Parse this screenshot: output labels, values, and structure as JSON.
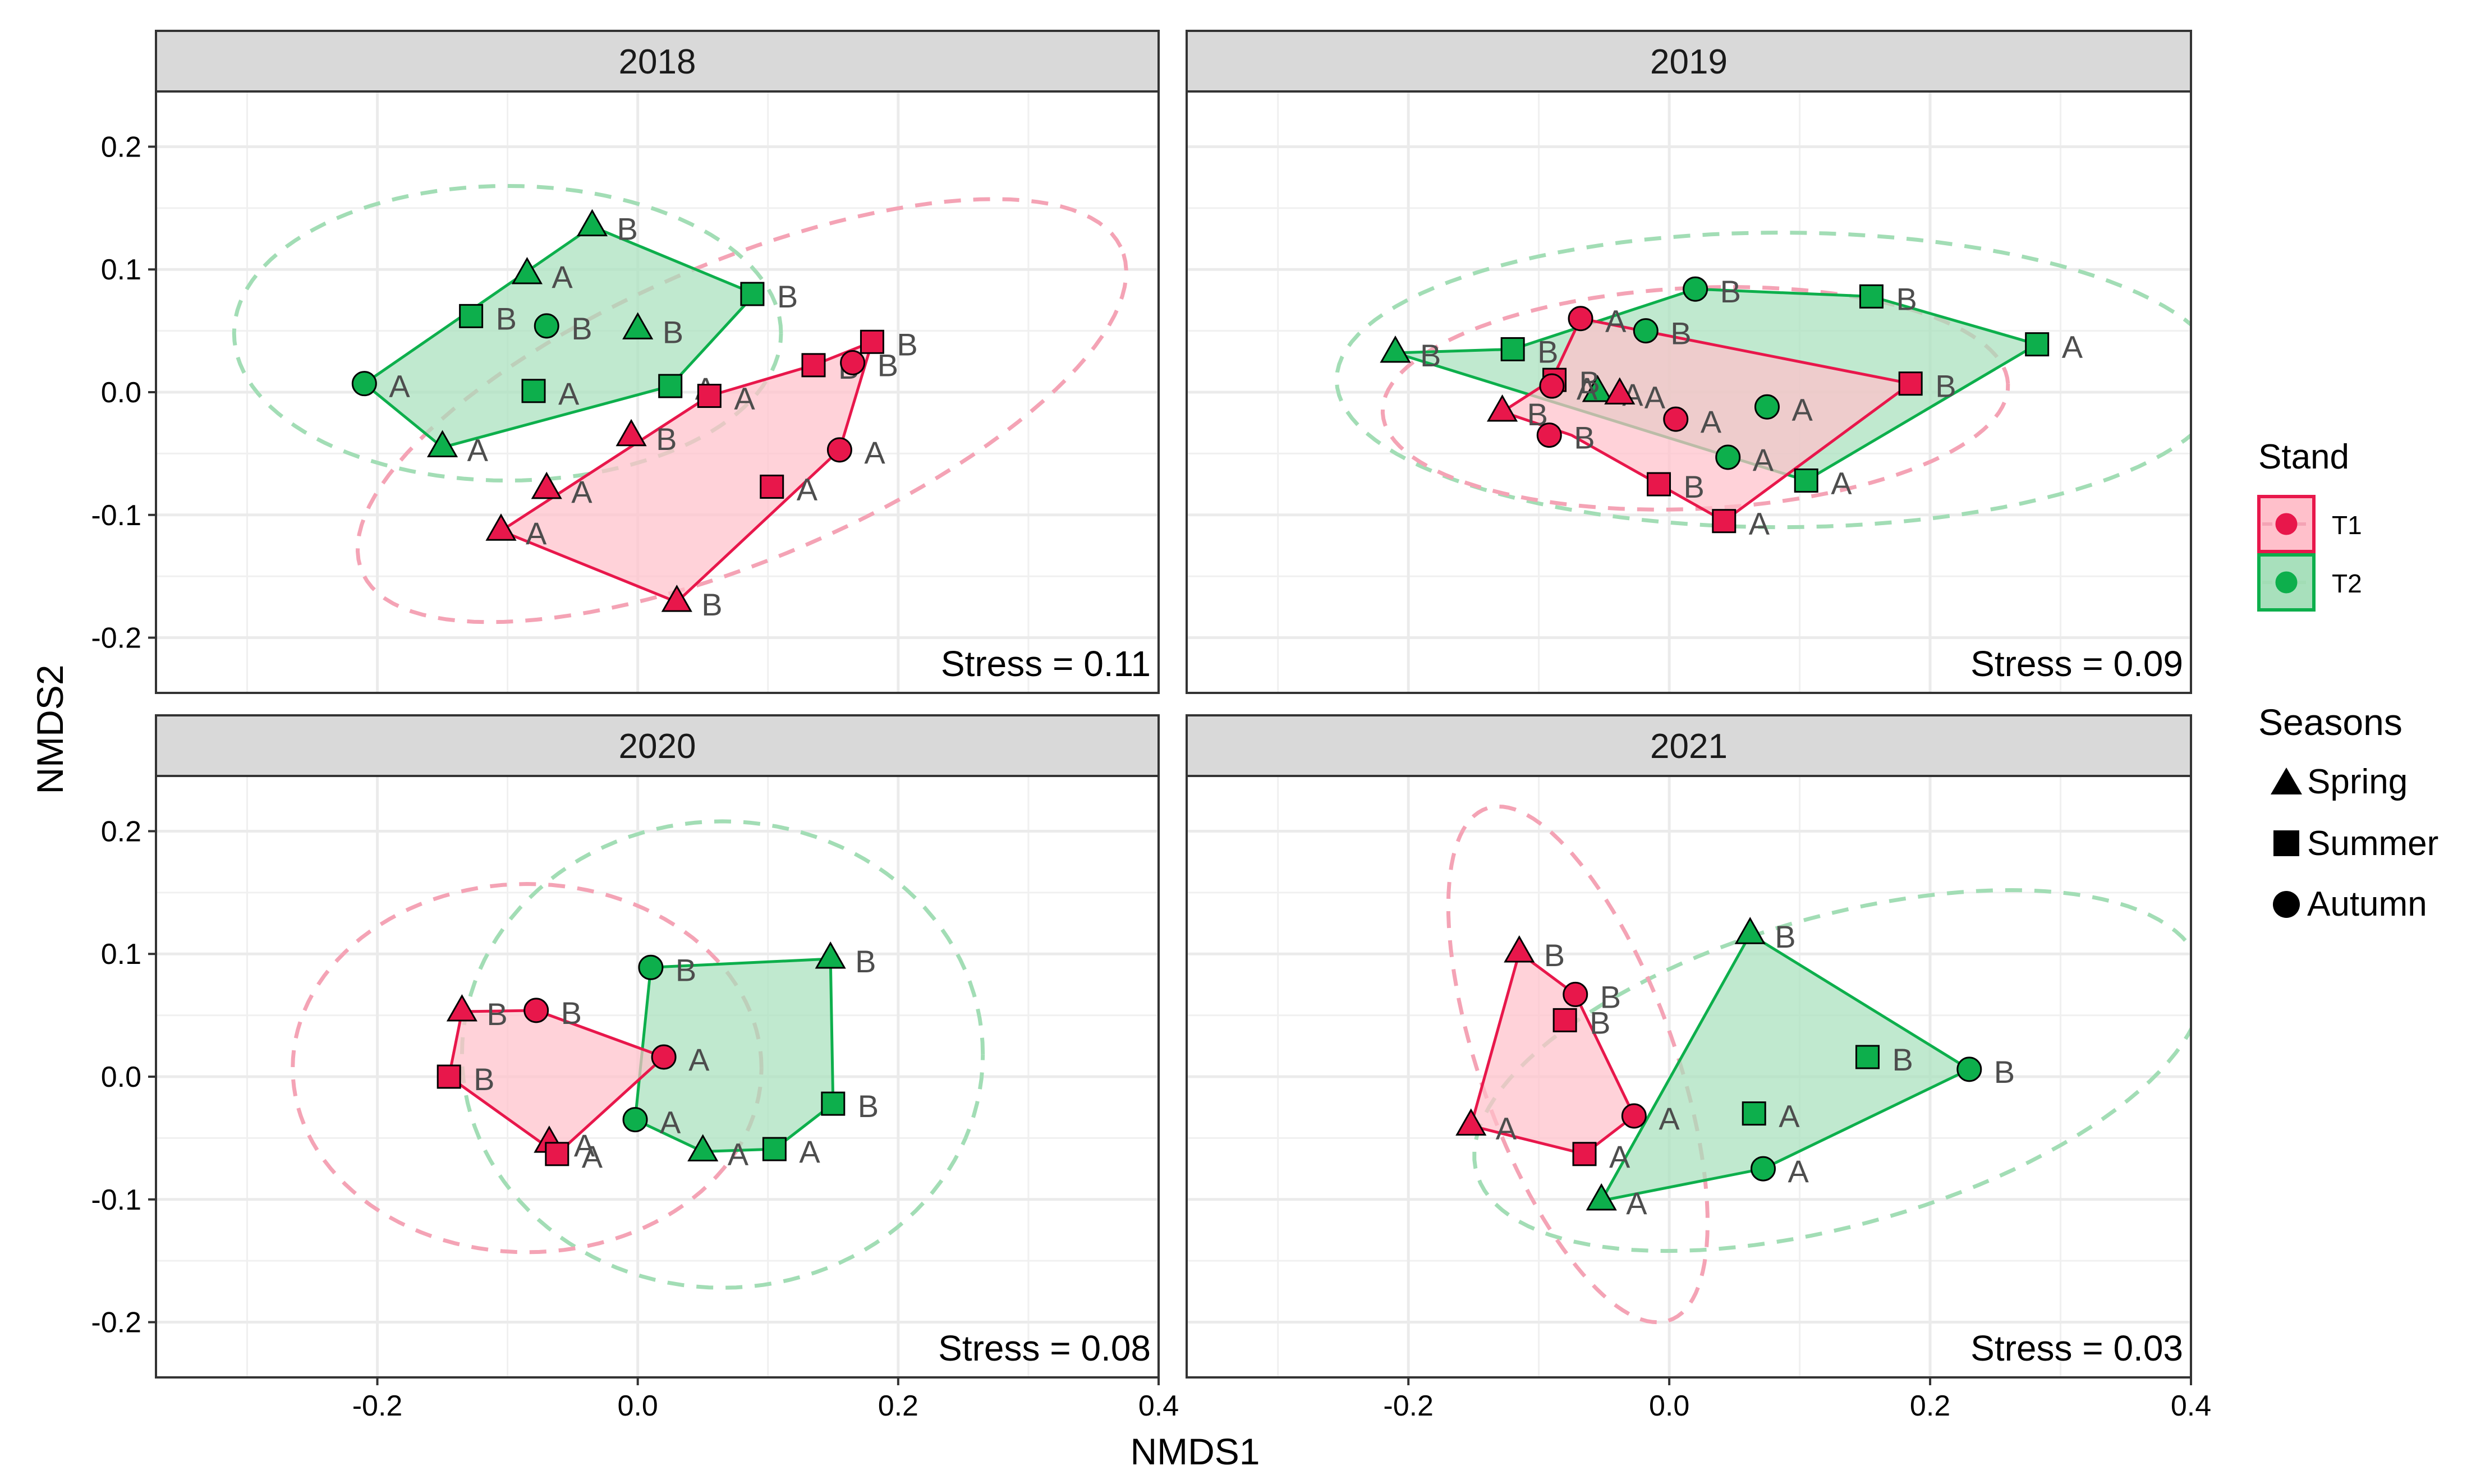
{
  "figure": {
    "xlabel": "NMDS1",
    "ylabel": "NMDS2",
    "colors": {
      "T1": "#E8174B",
      "T2": "#0DAF4C",
      "T1_fill": "#FFC0CB",
      "T2_fill": "#A8E0BC",
      "ellipse_T1": "#F4A3B5",
      "ellipse_T2": "#A2DDB5",
      "strip": "#D9D9D9"
    }
  },
  "legend": {
    "stand_title": "Stand",
    "stand_items": [
      {
        "key": "T1",
        "label": "T1"
      },
      {
        "key": "T2",
        "label": "T2"
      }
    ],
    "seasons_title": "Seasons",
    "season_items": [
      {
        "shape": "triangle",
        "label": "Spring"
      },
      {
        "shape": "square",
        "label": "Summer"
      },
      {
        "shape": "circle",
        "label": "Autumn"
      }
    ]
  },
  "chart_data": [
    {
      "type": "scatter",
      "title": "2018",
      "stress": "Stress = 0.11",
      "xlim": [
        -0.37,
        0.4
      ],
      "ylim": [
        -0.245,
        0.245
      ],
      "xticks": [
        -0.2,
        0.0,
        0.2,
        0.4
      ],
      "xtick_labels": [
        "-0.2",
        "0.0",
        "0.2",
        "0.4"
      ],
      "yticks": [
        -0.2,
        -0.1,
        0.0,
        0.1,
        0.2
      ],
      "ytick_labels": [
        "-0.2",
        "-0.1",
        "0.0",
        "0.1",
        "0.2"
      ],
      "ellipses": [
        {
          "stand": "T2",
          "cx": -0.1,
          "cy": 0.048,
          "rx": 0.21,
          "ry": 0.12,
          "angle": 0
        },
        {
          "stand": "T1",
          "cx": 0.08,
          "cy": -0.015,
          "rx": 0.32,
          "ry": 0.12,
          "angle": 0.43
        }
      ],
      "hulls": [
        {
          "stand": "T2",
          "x": [
            -0.21,
            -0.15,
            0.025,
            0.09,
            -0.035
          ],
          "y": [
            0.007,
            -0.045,
            0.005,
            0.08,
            0.135
          ]
        },
        {
          "stand": "T1",
          "x": [
            -0.105,
            0.03,
            0.155,
            0.18,
            0.135,
            0.055
          ],
          "y": [
            -0.113,
            -0.171,
            -0.047,
            0.041,
            0.022,
            -0.003
          ]
        }
      ],
      "points": [
        {
          "stand": "T2",
          "season": "Spring",
          "x": -0.035,
          "y": 0.135,
          "label": "B"
        },
        {
          "stand": "T2",
          "season": "Spring",
          "x": -0.085,
          "y": 0.096,
          "label": "A"
        },
        {
          "stand": "T2",
          "season": "Spring",
          "x": 0.0,
          "y": 0.051,
          "label": "B"
        },
        {
          "stand": "T2",
          "season": "Spring",
          "x": -0.15,
          "y": -0.045,
          "label": "A"
        },
        {
          "stand": "T2",
          "season": "Summer",
          "x": 0.088,
          "y": 0.08,
          "label": "B"
        },
        {
          "stand": "T2",
          "season": "Summer",
          "x": -0.128,
          "y": 0.062,
          "label": "B"
        },
        {
          "stand": "T2",
          "season": "Summer",
          "x": -0.08,
          "y": 0.001,
          "label": "A"
        },
        {
          "stand": "T2",
          "season": "Summer",
          "x": 0.025,
          "y": 0.005,
          "label": "A"
        },
        {
          "stand": "T2",
          "season": "Autumn",
          "x": -0.07,
          "y": 0.054,
          "label": "B"
        },
        {
          "stand": "T2",
          "season": "Autumn",
          "x": -0.21,
          "y": 0.007,
          "label": "A"
        },
        {
          "stand": "T1",
          "season": "Spring",
          "x": -0.005,
          "y": -0.036,
          "label": "B"
        },
        {
          "stand": "T1",
          "season": "Spring",
          "x": -0.07,
          "y": -0.079,
          "label": "A"
        },
        {
          "stand": "T1",
          "season": "Spring",
          "x": -0.105,
          "y": -0.113,
          "label": "A"
        },
        {
          "stand": "T1",
          "season": "Spring",
          "x": 0.03,
          "y": -0.171,
          "label": "B"
        },
        {
          "stand": "T1",
          "season": "Summer",
          "x": 0.18,
          "y": 0.041,
          "label": "B"
        },
        {
          "stand": "T1",
          "season": "Summer",
          "x": 0.135,
          "y": 0.022,
          "label": "B"
        },
        {
          "stand": "T1",
          "season": "Summer",
          "x": 0.055,
          "y": -0.003,
          "label": "A"
        },
        {
          "stand": "T1",
          "season": "Summer",
          "x": 0.103,
          "y": -0.077,
          "label": "A"
        },
        {
          "stand": "T1",
          "season": "Autumn",
          "x": 0.165,
          "y": 0.024,
          "label": "B"
        },
        {
          "stand": "T1",
          "season": "Autumn",
          "x": 0.155,
          "y": -0.047,
          "label": "A"
        }
      ]
    },
    {
      "type": "scatter",
      "title": "2019",
      "stress": "Stress = 0.09",
      "xlim": [
        -0.37,
        0.4
      ],
      "ylim": [
        -0.245,
        0.245
      ],
      "xticks": [
        -0.2,
        0.0,
        0.2,
        0.4
      ],
      "xtick_labels": [
        "-0.2",
        "0.0",
        "0.2",
        "0.4"
      ],
      "yticks": [
        -0.2,
        -0.1,
        0.0,
        0.1,
        0.2
      ],
      "ytick_labels": [
        "-0.2",
        "-0.1",
        "0.0",
        "0.1",
        "0.2"
      ],
      "ellipses": [
        {
          "stand": "T2",
          "cx": 0.085,
          "cy": 0.01,
          "rx": 0.34,
          "ry": 0.12,
          "angle": 0
        },
        {
          "stand": "T1",
          "cx": 0.02,
          "cy": -0.005,
          "rx": 0.24,
          "ry": 0.09,
          "angle": 0.05
        }
      ],
      "hulls": [
        {
          "stand": "T2",
          "x": [
            -0.21,
            0.105,
            0.282,
            0.155,
            0.02,
            -0.12
          ],
          "y": [
            0.032,
            -0.072,
            0.039,
            0.078,
            0.084,
            0.035
          ]
        },
        {
          "stand": "T1",
          "x": [
            -0.128,
            -0.075,
            0.042,
            0.185,
            -0.068,
            -0.09
          ],
          "y": [
            -0.016,
            -0.035,
            -0.105,
            0.007,
            0.06,
            0.01
          ]
        }
      ],
      "points": [
        {
          "stand": "T2",
          "season": "Spring",
          "x": -0.21,
          "y": 0.032,
          "label": "B"
        },
        {
          "stand": "T2",
          "season": "Spring",
          "x": -0.055,
          "y": 0.0,
          "label": "A"
        },
        {
          "stand": "T2",
          "season": "Summer",
          "x": -0.12,
          "y": 0.035,
          "label": "B"
        },
        {
          "stand": "T2",
          "season": "Summer",
          "x": 0.155,
          "y": 0.078,
          "label": "B"
        },
        {
          "stand": "T2",
          "season": "Summer",
          "x": 0.282,
          "y": 0.039,
          "label": "A"
        },
        {
          "stand": "T2",
          "season": "Summer",
          "x": 0.105,
          "y": -0.072,
          "label": "A"
        },
        {
          "stand": "T2",
          "season": "Autumn",
          "x": 0.02,
          "y": 0.084,
          "label": "B"
        },
        {
          "stand": "T2",
          "season": "Autumn",
          "x": -0.018,
          "y": 0.05,
          "label": "B"
        },
        {
          "stand": "T2",
          "season": "Autumn",
          "x": 0.075,
          "y": -0.012,
          "label": "A"
        },
        {
          "stand": "T2",
          "season": "Autumn",
          "x": 0.045,
          "y": -0.053,
          "label": "A"
        },
        {
          "stand": "T1",
          "season": "Spring",
          "x": -0.128,
          "y": -0.016,
          "label": "B"
        },
        {
          "stand": "T1",
          "season": "Spring",
          "x": -0.038,
          "y": -0.002,
          "label": "A"
        },
        {
          "stand": "T1",
          "season": "Summer",
          "x": -0.088,
          "y": 0.01,
          "label": "B"
        },
        {
          "stand": "T1",
          "season": "Summer",
          "x": 0.185,
          "y": 0.007,
          "label": "B"
        },
        {
          "stand": "T1",
          "season": "Summer",
          "x": -0.008,
          "y": -0.075,
          "label": "B"
        },
        {
          "stand": "T1",
          "season": "Summer",
          "x": 0.042,
          "y": -0.105,
          "label": "A"
        },
        {
          "stand": "T1",
          "season": "Autumn",
          "x": -0.068,
          "y": 0.06,
          "label": "A"
        },
        {
          "stand": "T1",
          "season": "Autumn",
          "x": -0.09,
          "y": 0.005,
          "label": "A"
        },
        {
          "stand": "T1",
          "season": "Autumn",
          "x": -0.092,
          "y": -0.035,
          "label": "B"
        },
        {
          "stand": "T1",
          "season": "Autumn",
          "x": 0.005,
          "y": -0.022,
          "label": "A"
        }
      ]
    },
    {
      "type": "scatter",
      "title": "2020",
      "stress": "Stress = 0.08",
      "xlim": [
        -0.37,
        0.4
      ],
      "ylim": [
        -0.245,
        0.245
      ],
      "xticks": [
        -0.2,
        0.0,
        0.2,
        0.4
      ],
      "xtick_labels": [
        "-0.2",
        "0.0",
        "0.2",
        "0.4"
      ],
      "yticks": [
        -0.2,
        -0.1,
        0.0,
        0.1,
        0.2
      ],
      "ytick_labels": [
        "-0.2",
        "-0.1",
        "0.0",
        "0.1",
        "0.2"
      ],
      "ellipses": [
        {
          "stand": "T2",
          "cx": 0.065,
          "cy": 0.018,
          "rx": 0.2,
          "ry": 0.19,
          "angle": 0
        },
        {
          "stand": "T1",
          "cx": -0.085,
          "cy": 0.007,
          "rx": 0.18,
          "ry": 0.15,
          "angle": 0
        }
      ],
      "hulls": [
        {
          "stand": "T2",
          "x": [
            0.01,
            -0.002,
            0.05,
            0.105,
            0.15,
            0.148
          ],
          "y": [
            0.089,
            -0.035,
            -0.061,
            -0.059,
            -0.022,
            0.096
          ]
        },
        {
          "stand": "T1",
          "x": [
            -0.145,
            -0.062,
            0.02,
            -0.078,
            -0.135
          ],
          "y": [
            0.0,
            -0.063,
            0.016,
            0.054,
            0.053
          ]
        }
      ],
      "points": [
        {
          "stand": "T2",
          "season": "Spring",
          "x": 0.148,
          "y": 0.096,
          "label": "B"
        },
        {
          "stand": "T2",
          "season": "Spring",
          "x": 0.05,
          "y": -0.061,
          "label": "A"
        },
        {
          "stand": "T2",
          "season": "Summer",
          "x": 0.15,
          "y": -0.022,
          "label": "B"
        },
        {
          "stand": "T2",
          "season": "Summer",
          "x": 0.105,
          "y": -0.059,
          "label": "A"
        },
        {
          "stand": "T2",
          "season": "Autumn",
          "x": 0.01,
          "y": 0.089,
          "label": "B"
        },
        {
          "stand": "T2",
          "season": "Autumn",
          "x": -0.002,
          "y": -0.035,
          "label": "A"
        },
        {
          "stand": "T1",
          "season": "Spring",
          "x": -0.135,
          "y": 0.053,
          "label": "B"
        },
        {
          "stand": "T1",
          "season": "Spring",
          "x": -0.068,
          "y": -0.054,
          "label": "A"
        },
        {
          "stand": "T1",
          "season": "Summer",
          "x": -0.145,
          "y": 0.0,
          "label": "B"
        },
        {
          "stand": "T1",
          "season": "Summer",
          "x": -0.062,
          "y": -0.063,
          "label": "A"
        },
        {
          "stand": "T1",
          "season": "Autumn",
          "x": -0.078,
          "y": 0.054,
          "label": "B"
        },
        {
          "stand": "T1",
          "season": "Autumn",
          "x": 0.02,
          "y": 0.016,
          "label": "A"
        }
      ]
    },
    {
      "type": "scatter",
      "title": "2021",
      "stress": "Stress = 0.03",
      "xlim": [
        -0.37,
        0.4
      ],
      "ylim": [
        -0.245,
        0.245
      ],
      "xticks": [
        -0.2,
        0.0,
        0.2,
        0.4
      ],
      "xtick_labels": [
        "-0.2",
        "0.0",
        "0.2",
        "0.4"
      ],
      "yticks": [
        -0.2,
        -0.1,
        0.0,
        0.1,
        0.2
      ],
      "ytick_labels": [
        "-0.2",
        "-0.1",
        "0.0",
        "0.1",
        "0.2"
      ],
      "ellipses": [
        {
          "stand": "T2",
          "cx": 0.13,
          "cy": 0.005,
          "rx": 0.29,
          "ry": 0.125,
          "angle": 0.3
        },
        {
          "stand": "T1",
          "cx": -0.07,
          "cy": 0.01,
          "rx": 0.22,
          "ry": 0.075,
          "angle": -1.25
        }
      ],
      "hulls": [
        {
          "stand": "T2",
          "x": [
            -0.052,
            0.072,
            0.23,
            0.062
          ],
          "y": [
            -0.101,
            -0.075,
            0.006,
            0.116
          ]
        },
        {
          "stand": "T1",
          "x": [
            -0.152,
            -0.065,
            -0.027,
            -0.072,
            -0.115
          ],
          "y": [
            -0.04,
            -0.063,
            -0.032,
            0.067,
            0.101
          ]
        }
      ],
      "points": [
        {
          "stand": "T2",
          "season": "Spring",
          "x": 0.062,
          "y": 0.116,
          "label": "B"
        },
        {
          "stand": "T2",
          "season": "Spring",
          "x": -0.052,
          "y": -0.101,
          "label": "A"
        },
        {
          "stand": "T2",
          "season": "Summer",
          "x": 0.152,
          "y": 0.016,
          "label": "B"
        },
        {
          "stand": "T2",
          "season": "Summer",
          "x": 0.065,
          "y": -0.03,
          "label": "A"
        },
        {
          "stand": "T2",
          "season": "Autumn",
          "x": 0.23,
          "y": 0.006,
          "label": "B"
        },
        {
          "stand": "T2",
          "season": "Autumn",
          "x": 0.072,
          "y": -0.075,
          "label": "A"
        },
        {
          "stand": "T1",
          "season": "Spring",
          "x": -0.115,
          "y": 0.101,
          "label": "B"
        },
        {
          "stand": "T1",
          "season": "Spring",
          "x": -0.152,
          "y": -0.04,
          "label": "A"
        },
        {
          "stand": "T1",
          "season": "Summer",
          "x": -0.08,
          "y": 0.046,
          "label": "B"
        },
        {
          "stand": "T1",
          "season": "Summer",
          "x": -0.065,
          "y": -0.063,
          "label": "A"
        },
        {
          "stand": "T1",
          "season": "Autumn",
          "x": -0.072,
          "y": 0.067,
          "label": "B"
        },
        {
          "stand": "T1",
          "season": "Autumn",
          "x": -0.027,
          "y": -0.032,
          "label": "A"
        }
      ]
    }
  ]
}
